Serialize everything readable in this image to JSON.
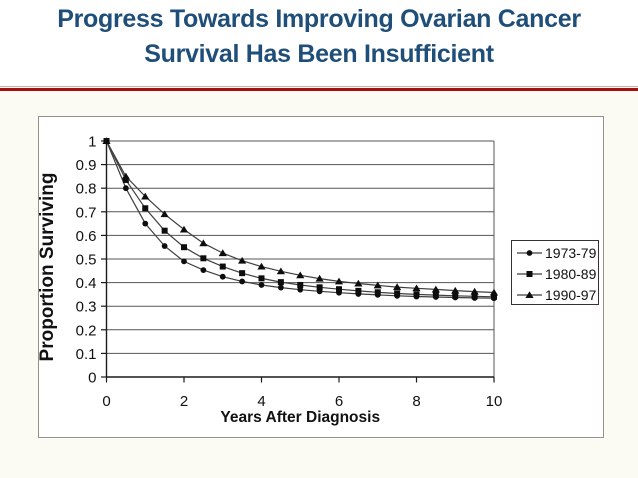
{
  "slide": {
    "title_line1": "Progress Towards Improving Ovarian Cancer",
    "title_line2": "Survival Has Been Insufficient",
    "title_color": "#1F4E79",
    "divider_color": "#A21010"
  },
  "chart_data": {
    "type": "line",
    "title": "",
    "xlabel": "Years After Diagnosis",
    "ylabel": "Proportion Surviving",
    "xlim": [
      0,
      10
    ],
    "ylim": [
      0,
      1
    ],
    "x_tick_labels": [
      "0",
      "2",
      "4",
      "6",
      "8",
      "10"
    ],
    "x_tick_values": [
      0,
      2,
      4,
      6,
      8,
      10
    ],
    "y_tick_labels": [
      "1",
      "0.9",
      "0.8",
      "0.7",
      "0.6",
      "0.5",
      "0.4",
      "0.3",
      "0.2",
      "0.1",
      "0"
    ],
    "y_tick_values": [
      1,
      0.9,
      0.8,
      0.7,
      0.6,
      0.5,
      0.4,
      0.3,
      0.2,
      0.1,
      0
    ],
    "grid": "horizontal",
    "legend_position": "right",
    "line_color": "#3f3f3f",
    "marker_color": "#0d0d0d",
    "x": [
      0,
      0.5,
      1,
      1.5,
      2,
      2.5,
      3,
      3.5,
      4,
      4.5,
      5,
      5.5,
      6,
      6.5,
      7,
      7.5,
      8,
      8.5,
      9,
      9.5,
      10
    ],
    "series": [
      {
        "name": "1973-79",
        "marker": "circle",
        "values": [
          1.0,
          0.8,
          0.65,
          0.555,
          0.49,
          0.453,
          0.425,
          0.405,
          0.39,
          0.379,
          0.37,
          0.363,
          0.357,
          0.352,
          0.348,
          0.344,
          0.341,
          0.339,
          0.337,
          0.335,
          0.334
        ]
      },
      {
        "name": "1980-89",
        "marker": "square",
        "values": [
          1.0,
          0.835,
          0.715,
          0.62,
          0.55,
          0.503,
          0.468,
          0.44,
          0.418,
          0.402,
          0.39,
          0.38,
          0.372,
          0.365,
          0.359,
          0.354,
          0.35,
          0.347,
          0.344,
          0.342,
          0.34
        ]
      },
      {
        "name": "1990-97",
        "marker": "triangle",
        "values": [
          1.0,
          0.85,
          0.765,
          0.69,
          0.625,
          0.567,
          0.525,
          0.493,
          0.468,
          0.448,
          0.431,
          0.417,
          0.405,
          0.396,
          0.388,
          0.381,
          0.376,
          0.371,
          0.366,
          0.362,
          0.358
        ]
      }
    ]
  }
}
